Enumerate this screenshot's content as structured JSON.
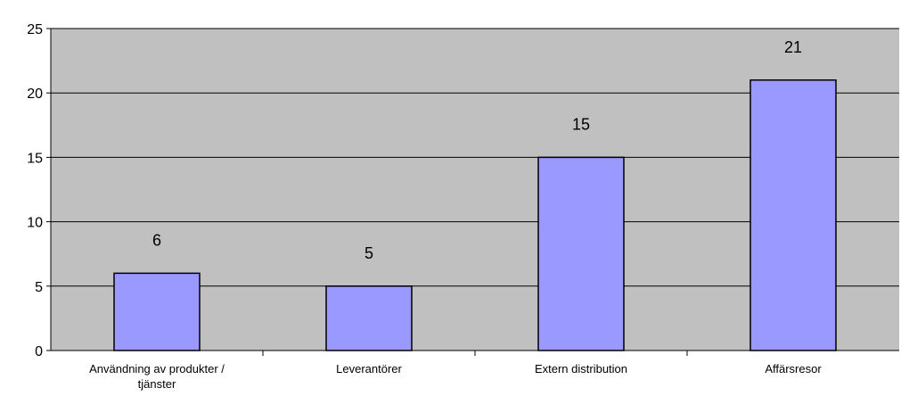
{
  "colors": {
    "plot_background": "#c0c0c0",
    "bar_fill": "#9999ff",
    "bar_stroke": "#000000",
    "gridline": "#000000"
  },
  "chart_data": {
    "type": "bar",
    "title": "",
    "xlabel": "",
    "ylabel": "",
    "categories": [
      [
        "Användning av produkter /",
        "tjänster"
      ],
      [
        "Leverantörer"
      ],
      [
        "Extern distribution"
      ],
      [
        "Affärsresor"
      ]
    ],
    "values": [
      6,
      5,
      15,
      21
    ],
    "data_labels": [
      "6",
      "5",
      "15",
      "21"
    ],
    "ylim": [
      0,
      25
    ],
    "yticks": [
      0,
      5,
      10,
      15,
      20,
      25
    ],
    "ytick_labels": [
      "0",
      "5",
      "10",
      "15",
      "20",
      "25"
    ],
    "grid": true,
    "legend": false
  }
}
